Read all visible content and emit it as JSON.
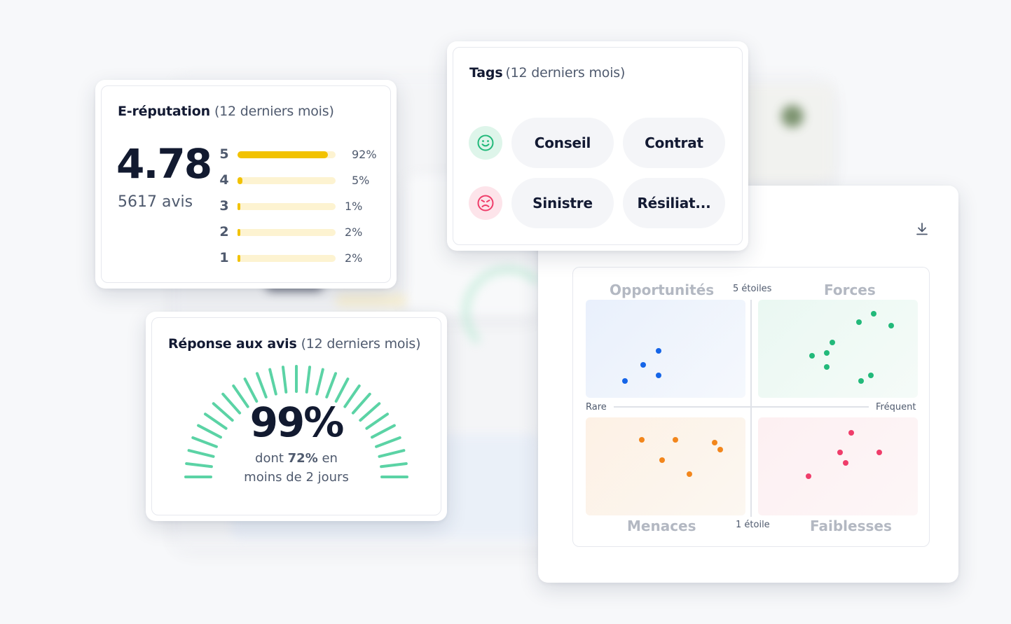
{
  "ereputation": {
    "title": "E-réputation",
    "period": "(12 derniers mois)",
    "score": "4.78",
    "count": "5617 avis",
    "bar_color": "#f2c200",
    "rows": [
      {
        "star": "5",
        "pct": "92%",
        "fraction": 0.92
      },
      {
        "star": "4",
        "pct": "5%",
        "fraction": 0.05
      },
      {
        "star": "3",
        "pct": "1%",
        "fraction": 0.01
      },
      {
        "star": "2",
        "pct": "2%",
        "fraction": 0.02
      },
      {
        "star": "1",
        "pct": "2%",
        "fraction": 0.02
      }
    ]
  },
  "tags": {
    "title": "Tags",
    "period": "(12 derniers mois)",
    "positive": [
      "Conseil",
      "Contrat"
    ],
    "negative": [
      "Sinistre",
      "Résiliat..."
    ],
    "positive_icon": "smiling-face-icon",
    "negative_icon": "angry-face-icon"
  },
  "reponse": {
    "title": "Réponse aux avis",
    "period": "(12 derniers mois)",
    "value": "99%",
    "fraction": 0.99,
    "sub_prefix": "dont",
    "sub_bold": "72%",
    "sub_suffix": "en",
    "sub_line2": "moins de 2 jours",
    "color": "#5bd3a5"
  },
  "swot": {
    "download_icon": "download-icon",
    "quadrants": {
      "opportunites": "Opportunités",
      "forces": "Forces",
      "menaces": "Menaces",
      "faiblesses": "Faiblesses"
    },
    "top_axis": "5 étoiles",
    "bottom_axis": "1 étoile",
    "left_axis": "Rare",
    "right_axis": "Fréquent",
    "colors": {
      "opportunites": "#1565e8",
      "forces": "#22b97a",
      "menaces": "#f2861c",
      "faiblesses": "#ef3d6a"
    }
  }
}
